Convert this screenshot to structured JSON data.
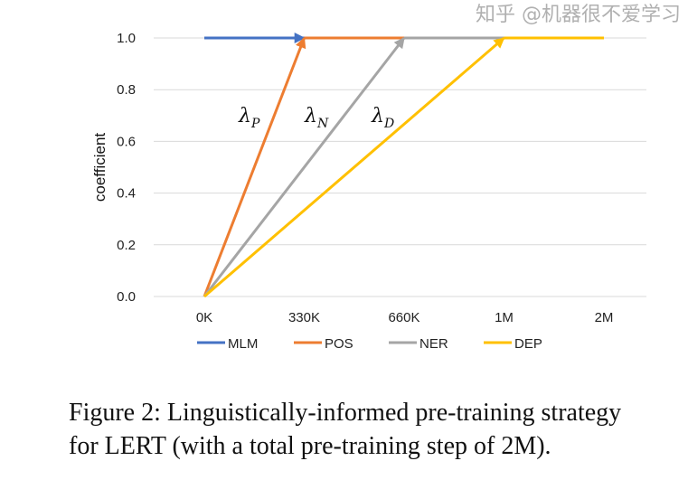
{
  "chart_data": {
    "type": "line",
    "title": "",
    "xlabel": "",
    "ylabel": "coefficient",
    "categories": [
      "0K",
      "330K",
      "660K",
      "1M",
      "2M"
    ],
    "yticks": [
      "0.0",
      "0.2",
      "0.4",
      "0.6",
      "0.8",
      "1.0"
    ],
    "ylim": [
      0,
      1
    ],
    "grid": true,
    "legend_position": "bottom",
    "series": [
      {
        "name": "MLM",
        "color": "#4472C4",
        "points": [
          [
            0,
            1.0
          ],
          [
            1,
            1.0
          ]
        ]
      },
      {
        "name": "POS",
        "color": "#ED7D31",
        "points": [
          [
            0,
            0.0
          ],
          [
            1,
            1.0
          ],
          [
            2,
            1.0
          ]
        ]
      },
      {
        "name": "NER",
        "color": "#A5A5A5",
        "points": [
          [
            0,
            0.0
          ],
          [
            2,
            1.0
          ],
          [
            3,
            1.0
          ]
        ]
      },
      {
        "name": "DEP",
        "color": "#FFC000",
        "points": [
          [
            0,
            0.0
          ],
          [
            3,
            1.0
          ],
          [
            4,
            1.0
          ]
        ]
      }
    ],
    "annotations": [
      {
        "symbol": "λ",
        "subscript": "P",
        "series": "POS"
      },
      {
        "symbol": "λ",
        "subscript": "N",
        "series": "NER"
      },
      {
        "symbol": "λ",
        "subscript": "D",
        "series": "DEP"
      }
    ]
  },
  "caption": {
    "line1": "Figure 2:  Linguistically-informed pre-training strategy",
    "line2": "for LERT (with a total pre-training step of 2M)."
  },
  "watermark": "知乎 @机器很不爱学习"
}
